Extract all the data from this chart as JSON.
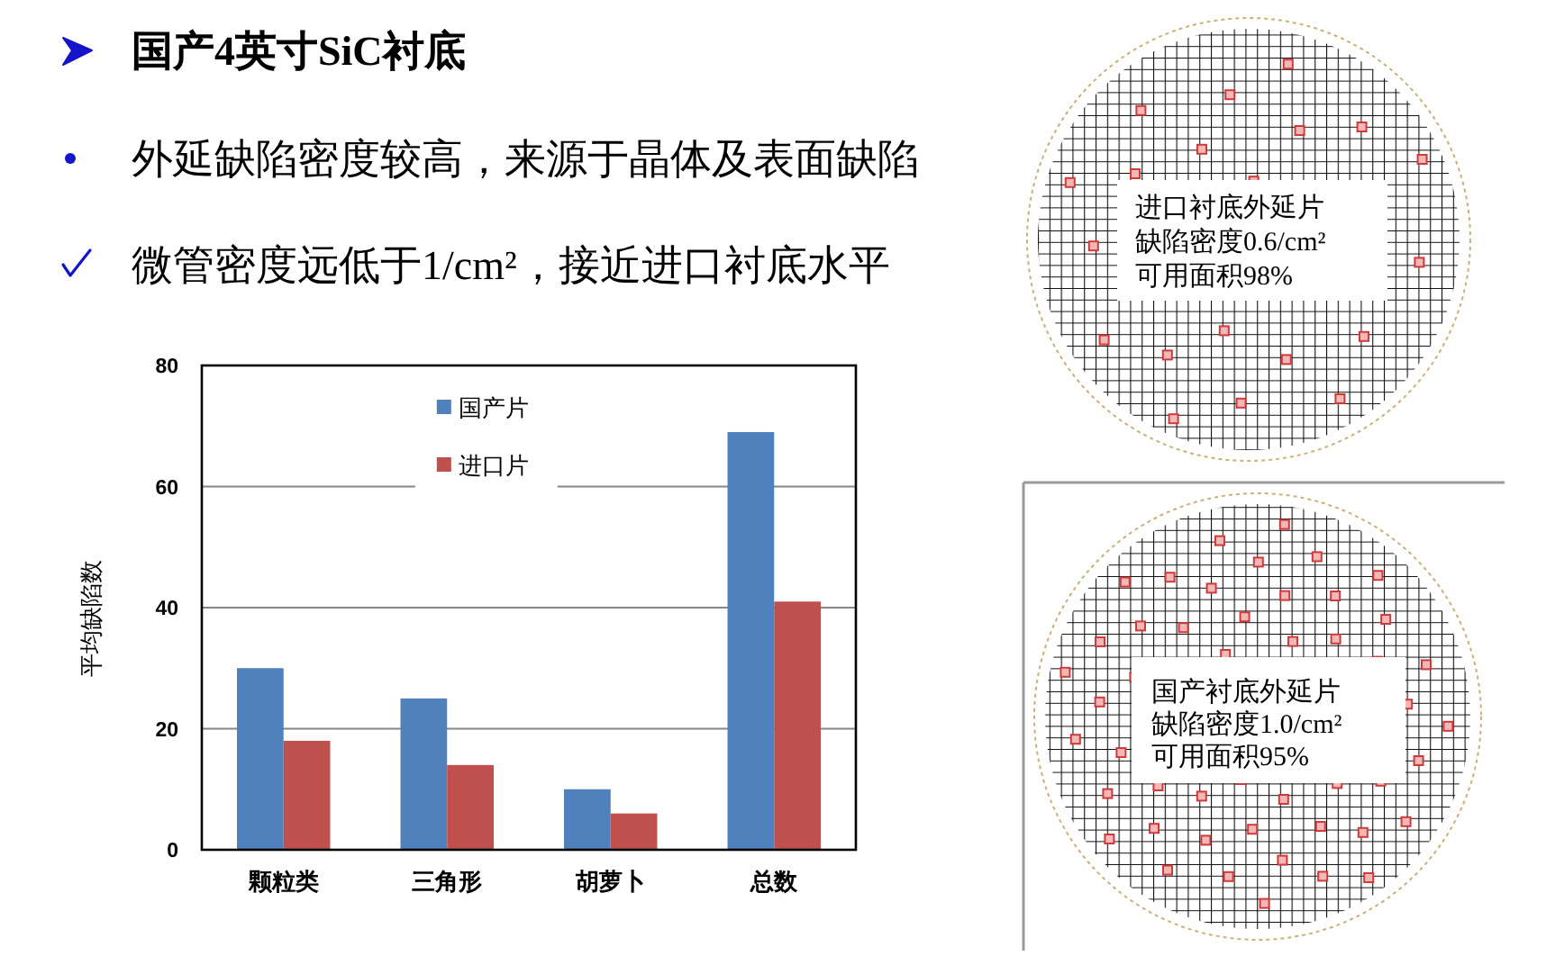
{
  "chart_data": {
    "type": "bar",
    "title": "国产4英寸SiC衬底",
    "ylabel": "平均缺陷数",
    "categories": [
      "颗粒类",
      "三角形",
      "胡萝卜",
      "总数"
    ],
    "series": [
      {
        "name": "国产片",
        "color": "#4f81bd",
        "values": [
          30,
          25,
          10,
          69
        ]
      },
      {
        "name": "进口片",
        "color": "#c0504d",
        "values": [
          18,
          14,
          6,
          41
        ]
      }
    ],
    "ylim": [
      0,
      80
    ],
    "yticks": [
      0,
      20,
      40,
      60,
      80
    ],
    "grid": "y",
    "legend": "top",
    "annotations": [
      "外延缺陷密度较高，来源于晶体及表面缺陷",
      "微管密度远低于1/cm²，接近进口衬底水平",
      "进口衬底外延片",
      "缺陷密度0.6/cm²",
      "可用面积98%",
      "国产衬底外延片",
      "缺陷密度1.0/cm²",
      "可用面积95%"
    ]
  }
}
